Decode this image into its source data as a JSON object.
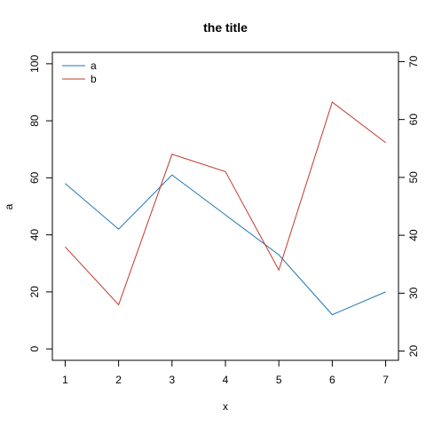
{
  "chart_data": {
    "type": "line",
    "title": "the title",
    "xlabel": "x",
    "ylabel": "a",
    "x": [
      1,
      2,
      3,
      4,
      5,
      6,
      7
    ],
    "x_ticks": [
      1,
      2,
      3,
      4,
      5,
      6,
      7
    ],
    "ylim_left": [
      -4,
      104
    ],
    "y_ticks_left": [
      0,
      20,
      40,
      60,
      80,
      100
    ],
    "ylim_right": [
      18.4,
      71.6
    ],
    "y_ticks_right": [
      20,
      30,
      40,
      50,
      60,
      70
    ],
    "grid": false,
    "legend_position": "top-left",
    "series": [
      {
        "name": "a",
        "axis": "left",
        "color": "#1f77b4",
        "values": [
          58,
          42,
          61,
          47,
          33,
          12,
          20
        ]
      },
      {
        "name": "b",
        "axis": "right",
        "color": "#c0392b",
        "values": [
          38,
          28,
          54,
          51,
          34,
          63,
          56
        ]
      }
    ]
  }
}
